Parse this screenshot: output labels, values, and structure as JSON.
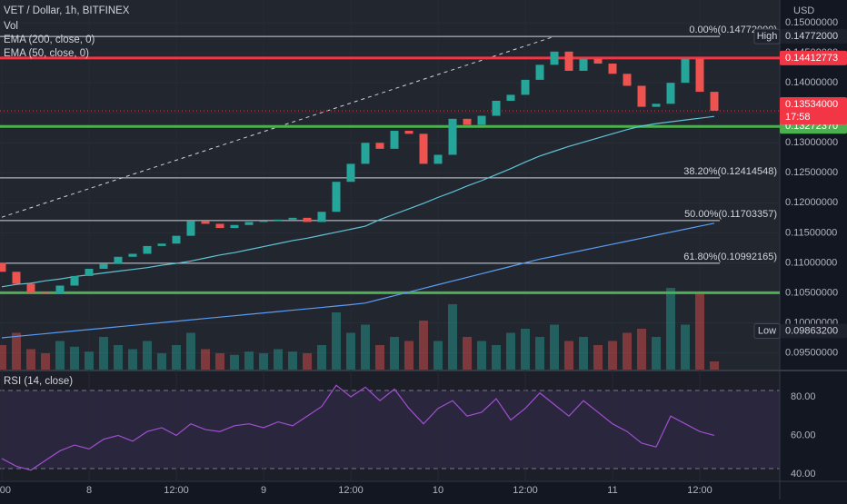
{
  "chart_data": [
    {
      "type": "candlestick",
      "title": "VET / Dollar, 1h, BITFINEX",
      "y_label": "USD",
      "up_color": "#26a69a",
      "down_color": "#ef5350",
      "categories": [
        ":00",
        null,
        null,
        null,
        null,
        null,
        "8",
        null,
        null,
        null,
        null,
        null,
        "12:00",
        null,
        null,
        null,
        null,
        null,
        "9",
        null,
        null,
        null,
        null,
        null,
        "12:00",
        null,
        null,
        null,
        null,
        null,
        "10",
        null,
        null,
        null,
        null,
        null,
        "12:00",
        null,
        null,
        null,
        null,
        null,
        "11",
        null,
        null,
        null,
        null,
        null,
        "12:00",
        null
      ],
      "open": [
        0.11,
        0.1085,
        0.1065,
        0.105,
        0.1048,
        0.1062,
        0.1078,
        0.109,
        0.1098,
        0.111,
        0.1115,
        0.1128,
        0.1132,
        0.1145,
        0.117,
        0.1165,
        0.1158,
        0.1163,
        0.1168,
        0.117,
        0.1172,
        0.1175,
        0.1168,
        0.1185,
        0.1235,
        0.1265,
        0.13,
        0.129,
        0.132,
        0.1315,
        0.1265,
        0.128,
        0.134,
        0.133,
        0.1345,
        0.137,
        0.138,
        0.1405,
        0.143,
        0.1452,
        0.142,
        0.144,
        0.1432,
        0.1415,
        0.1395,
        0.136,
        0.1365,
        0.14,
        0.144,
        0.1385
      ],
      "high": {
        "name": "High",
        "value": 0.14772,
        "label": "0.14772000"
      },
      "low": {
        "name": "Low",
        "value": 0.098632,
        "label": "0.09863200"
      },
      "close": [
        0.1085,
        0.1065,
        0.105,
        0.1048,
        0.1062,
        0.1078,
        0.109,
        0.1098,
        0.111,
        0.1115,
        0.1128,
        0.1132,
        0.1145,
        0.117,
        0.1165,
        0.1158,
        0.1163,
        0.1168,
        0.117,
        0.1172,
        0.1175,
        0.1168,
        0.1185,
        0.1235,
        0.1265,
        0.13,
        0.129,
        0.132,
        0.1315,
        0.1265,
        0.128,
        0.134,
        0.133,
        0.1345,
        0.137,
        0.138,
        0.1405,
        0.143,
        0.1452,
        0.142,
        0.144,
        0.1432,
        0.1415,
        0.1395,
        0.136,
        0.1365,
        0.14,
        0.144,
        0.1385,
        0.13534
      ],
      "series": [
        {
          "name": "EMA (200, close, 0)",
          "color": "#5b9cf6",
          "values": [
            0.0975,
            0.09773,
            0.09796,
            0.09819,
            0.09842,
            0.09865,
            0.09888,
            0.09911,
            0.09934,
            0.09957,
            0.0998,
            0.10003,
            0.10026,
            0.10049,
            0.10072,
            0.10095,
            0.10118,
            0.10141,
            0.10164,
            0.10187,
            0.1021,
            0.10233,
            0.10256,
            0.10279,
            0.10302,
            0.1033,
            0.10391,
            0.10452,
            0.10513,
            0.10574,
            0.10635,
            0.10696,
            0.10757,
            0.10818,
            0.10879,
            0.1094,
            0.11001,
            0.11062,
            0.1111,
            0.1116,
            0.1121,
            0.1126,
            0.1131,
            0.1136,
            0.1141,
            0.1146,
            0.1151,
            0.1156,
            0.1161,
            0.1166
          ]
        },
        {
          "name": "EMA (50, close, 0)",
          "color": "#5fc4d6",
          "values": [
            0.106,
            0.1064,
            0.1066,
            0.107,
            0.1073,
            0.1077,
            0.108,
            0.1083,
            0.1086,
            0.1089,
            0.1092,
            0.1096,
            0.1099,
            0.1103,
            0.1108,
            0.1113,
            0.1117,
            0.1122,
            0.1127,
            0.1132,
            0.1137,
            0.1141,
            0.1146,
            0.1151,
            0.1156,
            0.1161,
            0.1172,
            0.1181,
            0.119,
            0.1199,
            0.1209,
            0.1218,
            0.1228,
            0.1237,
            0.1247,
            0.1257,
            0.1268,
            0.1278,
            0.1286,
            0.1294,
            0.1301,
            0.1308,
            0.1315,
            0.1322,
            0.1328,
            0.1332,
            0.1335,
            0.1338,
            0.1341,
            0.1344
          ]
        }
      ],
      "ylim": [
        0.0922,
        0.1538
      ],
      "yticks": [
        {
          "value": 0.095,
          "label": "0.09500000"
        },
        {
          "value": 0.1,
          "label": "0.10000000"
        },
        {
          "value": 0.105,
          "label": "0.10500000"
        },
        {
          "value": 0.11,
          "label": "0.11000000"
        },
        {
          "value": 0.115,
          "label": "0.11500000"
        },
        {
          "value": 0.12,
          "label": "0.12000000"
        },
        {
          "value": 0.125,
          "label": "0.12500000"
        },
        {
          "value": 0.13,
          "label": "0.13000000"
        },
        {
          "value": 0.135,
          "label": "0.13500000"
        },
        {
          "value": 0.14,
          "label": "0.14000000"
        },
        {
          "value": 0.145,
          "label": "0.14500000"
        },
        {
          "value": 0.15,
          "label": "0.15000000"
        }
      ],
      "fib_levels": [
        {
          "value": 0.14772,
          "label": "0.00%(0.14772000)"
        },
        {
          "value": 0.12414548,
          "label": "38.20%(0.12414548)"
        },
        {
          "value": 0.11703357,
          "label": "50.00%(0.11703357)"
        },
        {
          "value": 0.10992165,
          "label": "61.80%(0.10992165)"
        }
      ],
      "trend_line": [
        [
          0,
          0.1176
        ],
        [
          38,
          0.14772
        ]
      ],
      "levels": [
        {
          "value": 0.14412773,
          "label": "0.14412773",
          "color": "#f23645"
        },
        {
          "value": 0.1327237,
          "label": "0.13272370",
          "color": "#4caf50"
        },
        {
          "value": 0.105,
          "color": "#4caf50"
        }
      ],
      "last": {
        "value": 0.13534,
        "label": "0.13534000",
        "countdown": "17:58",
        "color": "#f23645"
      }
    },
    {
      "type": "bar",
      "name": "Vol",
      "values": [
        30,
        45,
        25,
        20,
        35,
        28,
        22,
        40,
        30,
        25,
        35,
        20,
        30,
        45,
        25,
        20,
        18,
        22,
        20,
        25,
        22,
        20,
        30,
        70,
        45,
        55,
        30,
        40,
        35,
        60,
        35,
        80,
        40,
        35,
        30,
        45,
        50,
        40,
        55,
        35,
        40,
        30,
        35,
        45,
        50,
        40,
        100,
        55,
        95,
        10
      ]
    },
    {
      "type": "line",
      "title": "RSI (14, close)",
      "color": "#a04fd0",
      "values": [
        48,
        44,
        42,
        47,
        52,
        55,
        53,
        58,
        60,
        57,
        62,
        64,
        60,
        66,
        63,
        62,
        65,
        66,
        64,
        67,
        65,
        70,
        75,
        86,
        80,
        85,
        78,
        84,
        74,
        66,
        74,
        78,
        70,
        72,
        79,
        68,
        74,
        82,
        76,
        70,
        78,
        72,
        66,
        62,
        56,
        54,
        70,
        66,
        62,
        60
      ],
      "ylim": [
        36.2,
        92.7
      ],
      "yticks": [
        {
          "value": 40,
          "label": "40.00"
        },
        {
          "value": 60,
          "label": "60.00"
        },
        {
          "value": 80,
          "label": "80.00"
        }
      ]
    }
  ]
}
